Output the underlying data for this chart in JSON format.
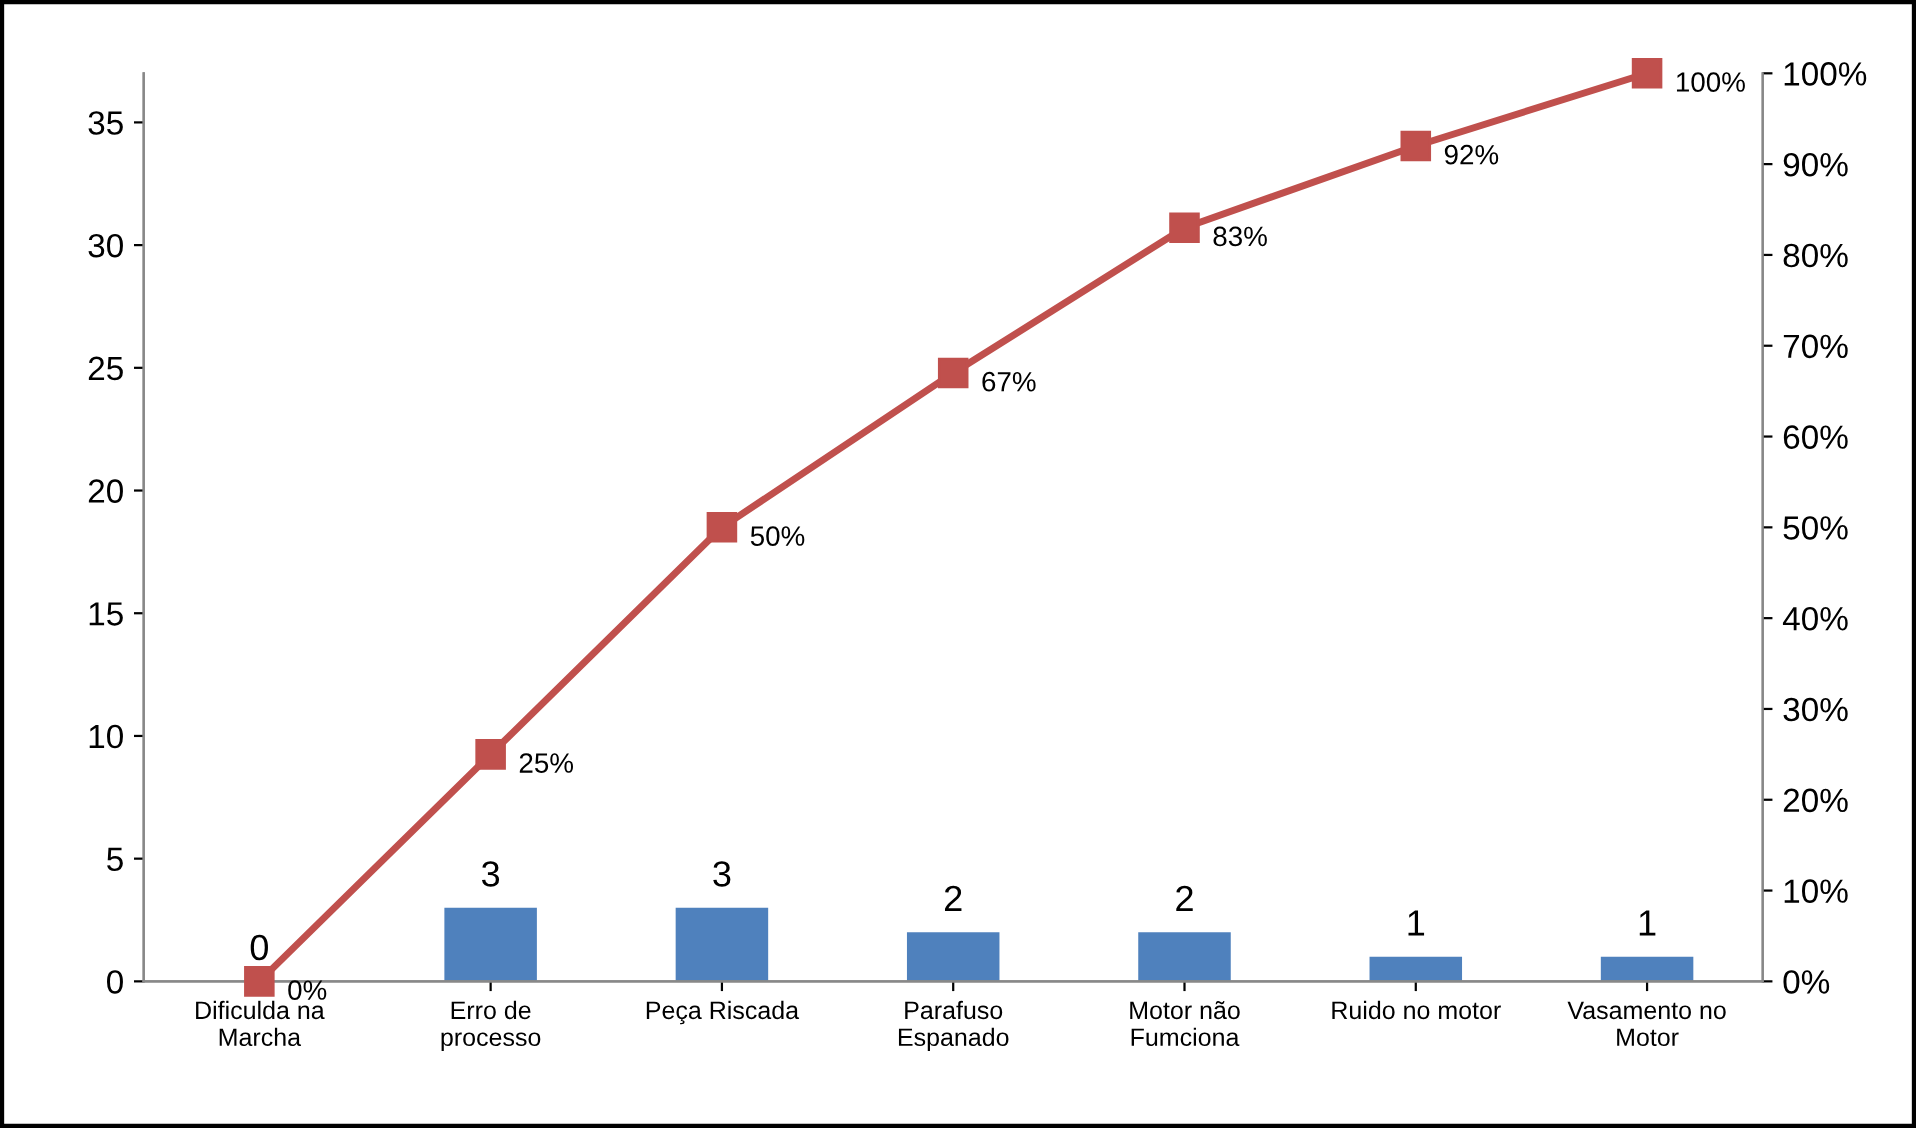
{
  "chart_data": {
    "type": "bar",
    "categories": [
      "Dificulda na\nMarcha",
      "Erro de\nprocesso",
      "Peça Riscada",
      "Parafuso\nEspanado",
      "Motor não\nFumciona",
      "Ruido no motor",
      "Vasamento no\nMotor"
    ],
    "series": [
      {
        "color": "#4f81bd",
        "values": [
          0,
          3,
          3,
          2,
          2,
          1,
          1
        ],
        "value_labels": [
          "0",
          "3",
          "3",
          "2",
          "2",
          "1",
          "1"
        ]
      },
      {
        "type": "line",
        "axis": "y2",
        "color": "#c0504d",
        "marker": "square",
        "values": [
          0,
          25,
          50,
          67,
          83,
          92,
          100
        ],
        "value_labels": [
          "0%",
          "25%",
          "50%",
          "67%",
          "83%",
          "92%",
          "100%"
        ]
      }
    ],
    "ylim": [
      0,
      37
    ],
    "yticks": [
      0,
      5,
      10,
      15,
      20,
      25,
      30,
      35
    ],
    "y2lim": [
      0,
      100
    ],
    "y2ticks": [
      {
        "value": 0,
        "label": "0%"
      },
      {
        "value": 10,
        "label": "10%"
      },
      {
        "value": 20,
        "label": "20%"
      },
      {
        "value": 30,
        "label": "30%"
      },
      {
        "value": 40,
        "label": "40%"
      },
      {
        "value": 50,
        "label": "50%"
      },
      {
        "value": 60,
        "label": "60%"
      },
      {
        "value": 70,
        "label": "70%"
      },
      {
        "value": 80,
        "label": "80%"
      },
      {
        "value": 90,
        "label": "90%"
      },
      {
        "value": 100,
        "label": "100%"
      }
    ],
    "grid": false,
    "legend": false
  }
}
